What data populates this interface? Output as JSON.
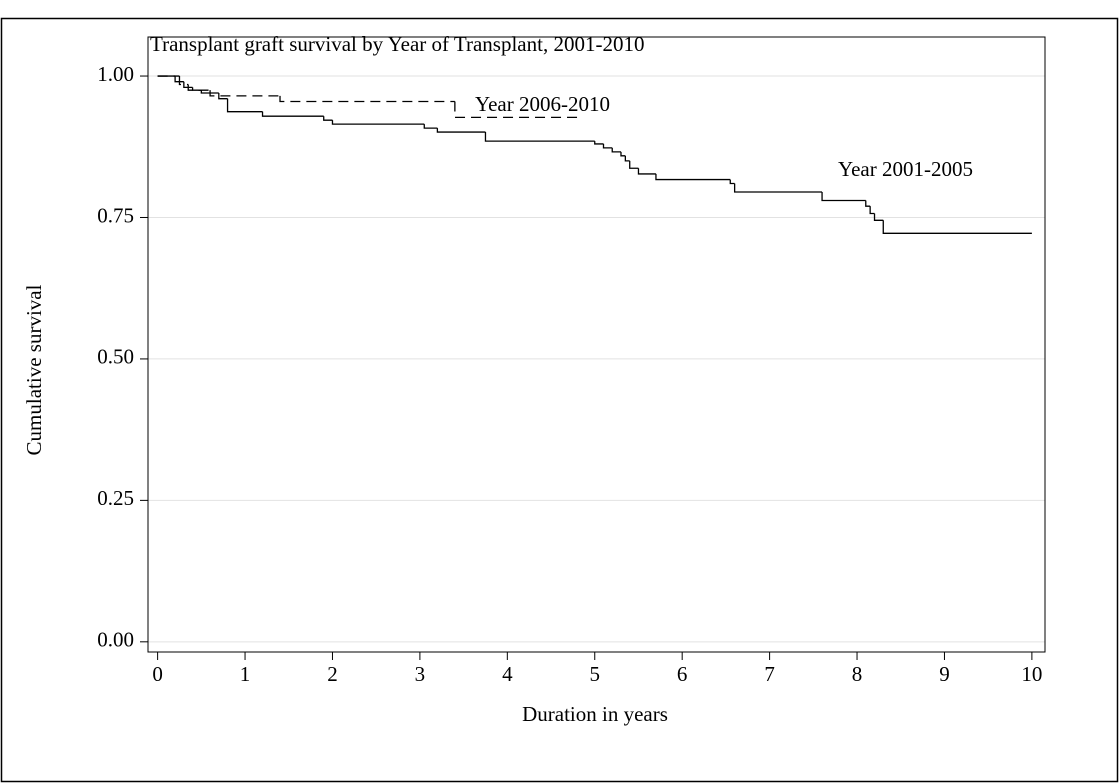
{
  "chart_data": {
    "type": "step",
    "title": "Transplant graft survival by Year of Transplant, 2001-2010",
    "x_label": "Duration in years",
    "y_label": "Cumulative survival",
    "xlim": [
      -0.11,
      10.15
    ],
    "ylim": [
      -0.018,
      1.069
    ],
    "xticks": [
      0,
      1,
      2,
      3,
      4,
      5,
      6,
      7,
      8,
      9,
      10
    ],
    "yticks": [
      {
        "value": 0,
        "label": "0.00"
      },
      {
        "value": 0.25,
        "label": "0.25"
      },
      {
        "value": 0.5,
        "label": "0.50"
      },
      {
        "value": 0.75,
        "label": "0.75"
      },
      {
        "value": 1,
        "label": "1.00"
      }
    ],
    "grid": true,
    "series": [
      {
        "name": "Year 2001-2005",
        "color": "#000000",
        "line_style": "solid",
        "x": [
          0,
          0.2,
          0.3,
          0.4,
          0.5,
          0.7,
          0.8,
          1.2,
          1.9,
          2.0,
          3.05,
          3.2,
          3.75,
          5.0,
          5.1,
          5.2,
          5.3,
          5.35,
          5.4,
          5.5,
          5.7,
          6.55,
          6.6,
          7.6,
          8.1,
          8.15,
          8.2,
          8.3,
          10
        ],
        "values": [
          1.0,
          0.99,
          0.98,
          0.975,
          0.97,
          0.96,
          0.937,
          0.929,
          0.922,
          0.915,
          0.908,
          0.901,
          0.885,
          0.88,
          0.873,
          0.866,
          0.859,
          0.85,
          0.837,
          0.827,
          0.817,
          0.81,
          0.795,
          0.78,
          0.77,
          0.757,
          0.745,
          0.722,
          0.722
        ]
      },
      {
        "name": "Year 2006-2010",
        "color": "#000000",
        "line_style": "dashed",
        "x": [
          0,
          0.25,
          0.35,
          0.6,
          1.4,
          3.4,
          4.85
        ],
        "values": [
          1.0,
          0.985,
          0.975,
          0.965,
          0.955,
          0.927,
          0.927
        ]
      }
    ]
  }
}
